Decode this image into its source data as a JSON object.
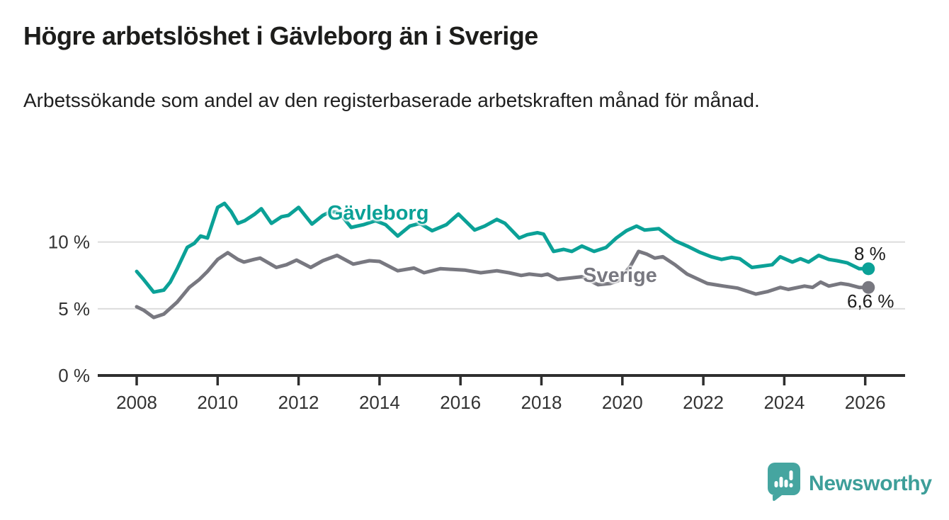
{
  "header": {
    "title": "Högre arbetslöshet i Gävleborg än i Sverige",
    "subtitle": "Arbetssökande som andel av den registerbaserade arbetskraften månad för månad."
  },
  "chart_data": {
    "type": "line",
    "unit": "%",
    "grid": "horizontal",
    "grid_color": "#dcdcdc",
    "axis_color": "#2e2e2e",
    "tick_label_color": "#333333",
    "x_axis": {
      "ticks": [
        2008,
        2010,
        2012,
        2014,
        2016,
        2018,
        2020,
        2022,
        2024,
        2026
      ],
      "range": [
        2007.07,
        2026.99
      ]
    },
    "y_axis": {
      "ticks": [
        {
          "value": 0,
          "label": "0 %"
        },
        {
          "value": 5,
          "label": "5 %"
        },
        {
          "value": 10,
          "label": "10 %"
        }
      ],
      "range": [
        0,
        13.8
      ]
    },
    "series": [
      {
        "name": "Gävleborg",
        "color": "#0ba197",
        "end_label": "8 %",
        "end_value": 8.0,
        "x": [
          2008.0,
          2008.17,
          2008.42,
          2008.67,
          2008.83,
          2009.0,
          2009.25,
          2009.42,
          2009.58,
          2009.75,
          2010.0,
          2010.17,
          2010.33,
          2010.5,
          2010.67,
          2010.92,
          2011.08,
          2011.33,
          2011.58,
          2011.75,
          2012.0,
          2012.33,
          2012.6,
          2012.8,
          2013.0,
          2013.3,
          2013.6,
          2013.9,
          2014.15,
          2014.45,
          2014.75,
          2015.0,
          2015.3,
          2015.65,
          2015.95,
          2016.35,
          2016.6,
          2016.9,
          2017.1,
          2017.45,
          2017.65,
          2017.9,
          2018.05,
          2018.3,
          2018.55,
          2018.75,
          2019.0,
          2019.3,
          2019.6,
          2019.85,
          2020.1,
          2020.35,
          2020.55,
          2020.9,
          2021.3,
          2021.6,
          2021.9,
          2022.2,
          2022.45,
          2022.7,
          2022.9,
          2023.2,
          2023.45,
          2023.7,
          2023.9,
          2024.2,
          2024.4,
          2024.6,
          2024.85,
          2025.1,
          2025.3,
          2025.55,
          2025.85,
          2026.08
        ],
        "values": [
          7.8,
          7.2,
          6.25,
          6.4,
          7.0,
          8.0,
          9.6,
          9.9,
          10.45,
          10.3,
          12.6,
          12.9,
          12.3,
          11.4,
          11.6,
          12.1,
          12.5,
          11.4,
          11.9,
          12.0,
          12.6,
          11.35,
          12.0,
          12.3,
          12.2,
          11.1,
          11.3,
          11.6,
          11.3,
          10.45,
          11.2,
          11.4,
          10.85,
          11.3,
          12.1,
          10.9,
          11.2,
          11.7,
          11.4,
          10.3,
          10.55,
          10.7,
          10.6,
          9.3,
          9.45,
          9.3,
          9.7,
          9.3,
          9.6,
          10.3,
          10.85,
          11.2,
          10.9,
          11.0,
          10.1,
          9.7,
          9.25,
          8.9,
          8.7,
          8.85,
          8.75,
          8.1,
          8.2,
          8.3,
          8.9,
          8.5,
          8.75,
          8.5,
          9.0,
          8.7,
          8.6,
          8.45,
          8.0,
          8.0
        ]
      },
      {
        "name": "Sverige",
        "color": "#787880",
        "end_label": "6,6 %",
        "end_value": 6.6,
        "x": [
          2008.0,
          2008.17,
          2008.42,
          2008.67,
          2009.0,
          2009.3,
          2009.55,
          2009.75,
          2010.0,
          2010.25,
          2010.5,
          2010.65,
          2010.9,
          2011.05,
          2011.45,
          2011.7,
          2011.95,
          2012.3,
          2012.6,
          2012.95,
          2013.35,
          2013.75,
          2014.0,
          2014.45,
          2014.85,
          2015.1,
          2015.5,
          2015.8,
          2016.1,
          2016.5,
          2016.9,
          2017.2,
          2017.5,
          2017.7,
          2018.0,
          2018.15,
          2018.4,
          2018.7,
          2019.0,
          2019.4,
          2019.7,
          2019.9,
          2020.2,
          2020.4,
          2020.6,
          2020.8,
          2021.0,
          2021.3,
          2021.6,
          2022.1,
          2022.5,
          2022.85,
          2023.3,
          2023.6,
          2023.9,
          2024.1,
          2024.5,
          2024.7,
          2024.9,
          2025.1,
          2025.4,
          2025.6,
          2025.85,
          2026.08
        ],
        "values": [
          5.15,
          4.9,
          4.35,
          4.6,
          5.5,
          6.6,
          7.2,
          7.8,
          8.7,
          9.2,
          8.7,
          8.5,
          8.7,
          8.8,
          8.1,
          8.3,
          8.65,
          8.1,
          8.6,
          9.0,
          8.35,
          8.6,
          8.55,
          7.85,
          8.05,
          7.7,
          8.0,
          7.95,
          7.9,
          7.7,
          7.85,
          7.7,
          7.5,
          7.6,
          7.5,
          7.6,
          7.2,
          7.3,
          7.4,
          6.8,
          6.9,
          7.1,
          8.2,
          9.3,
          9.1,
          8.8,
          8.9,
          8.3,
          7.6,
          6.9,
          6.7,
          6.55,
          6.1,
          6.3,
          6.6,
          6.45,
          6.7,
          6.6,
          7.0,
          6.7,
          6.9,
          6.8,
          6.6,
          6.6
        ]
      }
    ],
    "legend": "inline-labels"
  },
  "footer": {
    "brand": "Newsworthy",
    "brand_color": "#3d9e99",
    "brand_icon_color": "#45a5a0"
  }
}
